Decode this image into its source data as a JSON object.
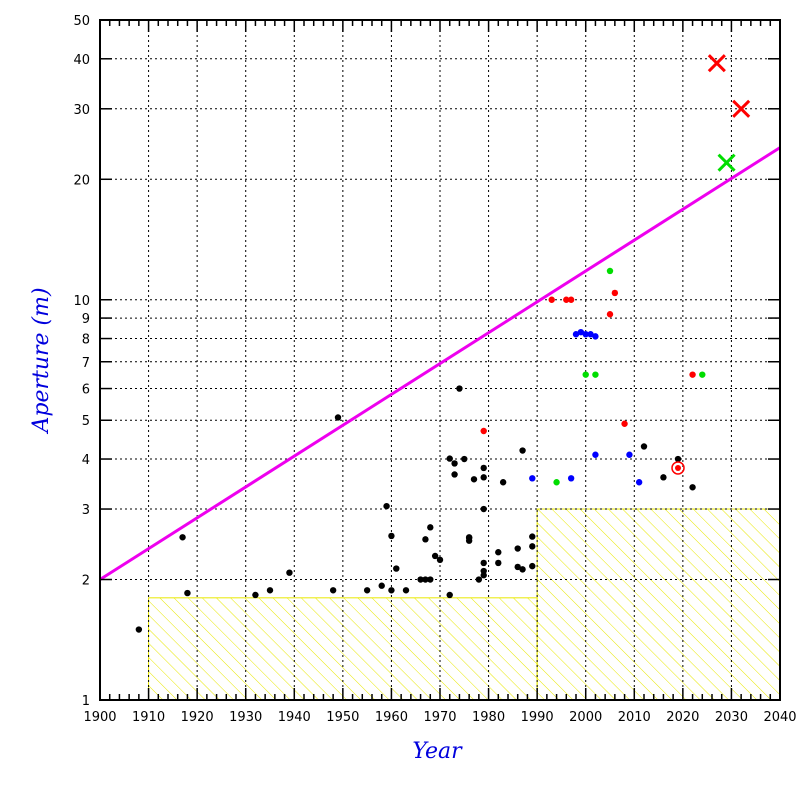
{
  "chart_data": {
    "type": "scatter",
    "title": "",
    "xlabel": "Year",
    "ylabel": "Aperture (m)",
    "xlim": [
      1900,
      2040
    ],
    "ylim": [
      1,
      50
    ],
    "y_scale": "log",
    "grid": true,
    "x_ticks": [
      1900,
      1910,
      1920,
      1930,
      1940,
      1950,
      1960,
      1970,
      1980,
      1990,
      2000,
      2010,
      2020,
      2030,
      2040
    ],
    "x_tick_labels": [
      "1900",
      "1910",
      "1920",
      "1930",
      "1940",
      "1950",
      "1960",
      "1970",
      "1980",
      "1990",
      "2000",
      "2010",
      "2020",
      "2030",
      "2040"
    ],
    "y_ticks": [
      1,
      2,
      3,
      4,
      5,
      6,
      7,
      8,
      9,
      10,
      20,
      30,
      40,
      50
    ],
    "y_tick_labels": [
      "1",
      "2",
      "3",
      "4",
      "5",
      "6",
      "7",
      "8",
      "9",
      "10",
      "20",
      "30",
      "40",
      "50"
    ],
    "colors": {
      "axis_title": "#0000dd",
      "trend": "#ee00ee",
      "hatch": "#e8e800",
      "black": "#000000",
      "red": "#ff0000",
      "green": "#00dd00",
      "blue": "#0000ff"
    },
    "trend_line": {
      "x": [
        1900,
        2040
      ],
      "y": [
        2.0,
        24.0
      ],
      "color": "#ee00ee"
    },
    "hatched_regions": [
      {
        "x": [
          1910,
          1990
        ],
        "y": [
          1,
          1.8
        ]
      },
      {
        "x": [
          1990,
          2040
        ],
        "y": [
          1,
          3.0
        ]
      }
    ],
    "series": [
      {
        "color": "#000000",
        "marker": "dot",
        "x": [
          1908,
          1917,
          1918,
          1932,
          1935,
          1939,
          1948,
          1949,
          1955,
          1958,
          1959,
          1960,
          1960,
          1961,
          1963,
          1966,
          1967,
          1967,
          1968,
          1968,
          1969,
          1970,
          1972,
          1972,
          1973,
          1973,
          1974,
          1975,
          1976,
          1976,
          1976,
          1977,
          1978,
          1979,
          1979,
          1979,
          1979,
          1979,
          1979,
          1982,
          1982,
          1983,
          1986,
          1986,
          1987,
          1987,
          1989,
          1989,
          1989,
          2012,
          2016,
          2019,
          2022
        ],
        "y": [
          1.5,
          2.55,
          1.85,
          1.83,
          1.88,
          2.08,
          1.88,
          5.08,
          1.88,
          1.93,
          3.05,
          2.57,
          1.88,
          2.13,
          1.88,
          2.0,
          2.0,
          2.52,
          2.7,
          2.0,
          2.29,
          2.24,
          4.01,
          1.83,
          3.9,
          3.66,
          6.0,
          4.0,
          2.54,
          2.55,
          2.5,
          3.56,
          2.0,
          3.6,
          3.8,
          2.2,
          2.1,
          3.0,
          2.05,
          2.34,
          2.2,
          3.5,
          2.15,
          2.39,
          4.2,
          2.12,
          2.56,
          2.42,
          2.16,
          4.3,
          3.6,
          4.0,
          3.4
        ]
      },
      {
        "color": "#ff0000",
        "marker": "dot",
        "x": [
          1979,
          1993,
          1996,
          1997,
          2005,
          2006,
          2008,
          2022
        ],
        "y": [
          4.7,
          10.0,
          10.0,
          10.0,
          9.2,
          10.4,
          4.9,
          6.5
        ]
      },
      {
        "color": "#00dd00",
        "marker": "dot",
        "x": [
          1994,
          2000,
          2002,
          2005,
          2024
        ],
        "y": [
          3.5,
          6.5,
          6.5,
          11.8,
          6.5
        ]
      },
      {
        "color": "#0000ff",
        "marker": "dot",
        "x": [
          1989,
          1997,
          1998,
          1999,
          2000,
          2001,
          2002,
          2002,
          2009,
          2011
        ],
        "y": [
          3.58,
          3.58,
          8.2,
          8.3,
          8.2,
          8.2,
          8.1,
          4.1,
          4.1,
          3.5
        ]
      },
      {
        "color": "#ff0000",
        "marker": "ring",
        "x": [
          2019
        ],
        "y": [
          3.8
        ]
      },
      {
        "color": "#ff0000",
        "marker": "cross",
        "x": [
          2027,
          2032
        ],
        "y": [
          39,
          30
        ]
      },
      {
        "color": "#00dd00",
        "marker": "cross",
        "x": [
          2029
        ],
        "y": [
          22
        ]
      }
    ]
  }
}
